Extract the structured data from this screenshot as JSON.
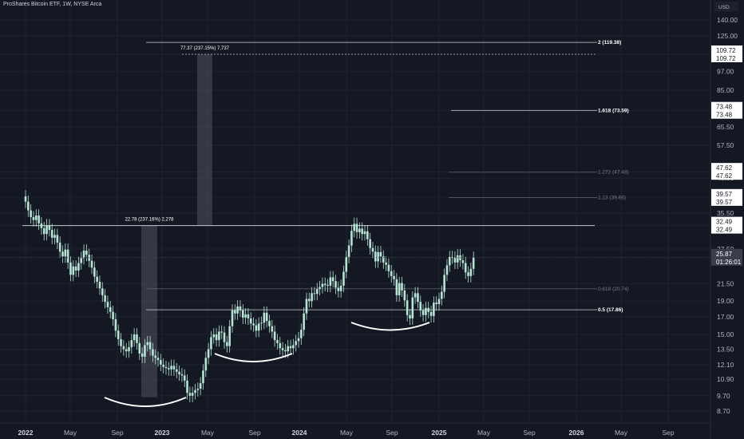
{
  "header": {
    "symbol_line": "ProShares Bitcoin ETF, 1W, NYSE Arca"
  },
  "price_scale": {
    "currency": "USD",
    "ticks": [
      "140.00",
      "125.00",
      "109.72",
      "97.00",
      "85.00",
      "73.48",
      "65.50",
      "57.50",
      "47.62",
      "45.50",
      "39.57",
      "35.50",
      "32.49",
      "27.50",
      "25.87",
      "21.50",
      "19.00",
      "17.00",
      "15.00",
      "13.50",
      "12.10",
      "10.90",
      "9.70",
      "8.70"
    ]
  },
  "price_tags": [
    {
      "value": "109.72",
      "value2": "109.72",
      "style": "white"
    },
    {
      "value": "73.48",
      "value2": "73.48",
      "style": "white"
    },
    {
      "value": "47.62",
      "value2": "47.62",
      "style": "white"
    },
    {
      "value": "39.57",
      "value2": "39.57",
      "style": "white"
    },
    {
      "value": "32.49",
      "value2": "32.49",
      "style": "white"
    },
    {
      "value": "25.87",
      "value2": "01:26:01",
      "style": "dark"
    }
  ],
  "time_axis": [
    {
      "label": "2022",
      "bold": true
    },
    {
      "label": "May",
      "bold": false
    },
    {
      "label": "Sep",
      "bold": false
    },
    {
      "label": "2023",
      "bold": true
    },
    {
      "label": "May",
      "bold": false
    },
    {
      "label": "Sep",
      "bold": false
    },
    {
      "label": "2024",
      "bold": true
    },
    {
      "label": "May",
      "bold": false
    },
    {
      "label": "Sep",
      "bold": false
    },
    {
      "label": "2025",
      "bold": true
    },
    {
      "label": "May",
      "bold": false
    },
    {
      "label": "Sep",
      "bold": false
    },
    {
      "label": "2026",
      "bold": true
    },
    {
      "label": "May",
      "bold": false
    },
    {
      "label": "Sep",
      "bold": false
    }
  ],
  "fib_levels": [
    {
      "label": "2 (119.38)",
      "price": 119.38,
      "emphasis": true
    },
    {
      "label": "1.618 (73.59)",
      "price": 73.59,
      "emphasis": true
    },
    {
      "label": "1.272 (47.48)",
      "price": 47.48,
      "emphasis": false
    },
    {
      "label": "1.13 (39.66)",
      "price": 39.66,
      "emphasis": false
    },
    {
      "label": "0.618 (20.74)",
      "price": 20.74,
      "emphasis": false
    },
    {
      "label": "0.5 (17.86)",
      "price": 17.86,
      "emphasis": true
    }
  ],
  "measurements": [
    {
      "label": "22.78 (237.16%) 2,278",
      "from": 9.6,
      "to": 32.49
    },
    {
      "label": "77.37 (237.15%) 7,737",
      "from": 32.49,
      "to": 109.72
    }
  ],
  "resistance_level": 32.49,
  "last_price": 25.87,
  "colors": {
    "background": "#141823",
    "candle": "#b7e4d4",
    "grid": "#1f2330",
    "fib_line": "#787b86",
    "arc": "#ffffff",
    "measure_fill": "#5d606b"
  },
  "chart_data": {
    "type": "candlestick",
    "title": "ProShares Bitcoin ETF, 1W, NYSE Arca",
    "x_range": [
      "2022-01",
      "2026-10"
    ],
    "y_scale": "log",
    "ylim": [
      8.2,
      160
    ],
    "weekly_closes_approx": [
      38.5,
      36.2,
      34.5,
      33.8,
      34.9,
      33.0,
      31.9,
      30.6,
      32.6,
      31.5,
      29.8,
      30.4,
      28.8,
      27.0,
      26.1,
      27.4,
      25.0,
      22.9,
      24.3,
      23.6,
      24.9,
      25.8,
      27.2,
      26.4,
      25.3,
      24.1,
      22.6,
      21.8,
      20.8,
      19.8,
      18.9,
      18.2,
      17.6,
      16.7,
      15.4,
      14.5,
      13.8,
      13.5,
      13.3,
      13.7,
      14.4,
      15.0,
      14.1,
      13.1,
      12.8,
      13.9,
      14.2,
      13.5,
      12.9,
      12.7,
      12.5,
      12.1,
      11.9,
      11.8,
      11.7,
      12.0,
      11.7,
      11.5,
      11.3,
      11.2,
      10.8,
      9.9,
      9.7,
      9.9,
      10.1,
      10.2,
      10.6,
      11.6,
      12.7,
      13.5,
      14.7,
      15.0,
      14.4,
      15.3,
      15.2,
      14.2,
      13.8,
      15.9,
      17.8,
      17.4,
      18.3,
      17.8,
      16.9,
      17.3,
      16.8,
      16.2,
      16.0,
      15.4,
      16.2,
      16.3,
      17.5,
      16.5,
      15.9,
      15.3,
      14.4,
      14.1,
      13.6,
      13.4,
      13.3,
      13.8,
      13.6,
      13.9,
      14.3,
      14.6,
      15.5,
      17.4,
      19.3,
      19.0,
      20.1,
      20.0,
      20.7,
      21.0,
      21.5,
      21.3,
      21.2,
      22.5,
      21.9,
      20.9,
      20.4,
      21.2,
      23.4,
      26.0,
      28.2,
      31.3,
      32.9,
      31.0,
      31.8,
      30.6,
      31.2,
      29.5,
      27.7,
      27.0,
      25.2,
      26.9,
      26.1,
      25.0,
      24.6,
      23.5,
      22.7,
      22.2,
      19.8,
      21.6,
      20.5,
      19.1,
      17.2,
      16.8,
      19.5,
      20.1,
      18.9,
      17.8,
      17.2,
      18.1,
      17.6,
      17.1,
      18.8,
      18.6,
      19.3,
      20.3,
      22.9,
      24.5,
      26.0,
      25.9,
      25.0,
      26.3,
      25.4,
      24.9,
      23.3,
      22.7,
      23.9,
      25.87
    ]
  }
}
